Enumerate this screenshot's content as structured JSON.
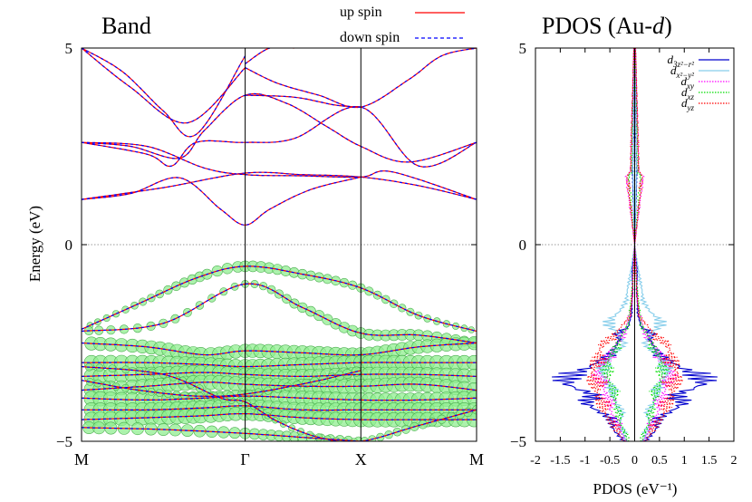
{
  "figure": {
    "left_panel_title": "Band",
    "right_panel_title_main": "PDOS (Au-",
    "right_panel_title_italic": "d",
    "right_panel_title_close": ")"
  },
  "chart_data": [
    {
      "type": "line",
      "title": "Band",
      "xlabel": "",
      "ylabel": "Energy (eV)",
      "ylim": [
        -5,
        5
      ],
      "x_ticks": [
        {
          "label": "M",
          "k": 0.0
        },
        {
          "label": "Γ",
          "k": 1.0
        },
        {
          "label": "X",
          "k": 1.7071
        },
        {
          "label": "M",
          "k": 2.4142
        }
      ],
      "y_ticks": [
        -5,
        0,
        5
      ],
      "fermi_level": 0,
      "legend_position": "top-center",
      "legend": [
        {
          "name": "up spin",
          "color": "#ff0000",
          "style": "solid"
        },
        {
          "name": "down spin",
          "color": "#0000ff",
          "style": "dashed"
        }
      ],
      "weight_marker_color": "#90ee90",
      "bands_eV": [
        {
          "k": [
            0.0,
            0.5,
            1.0,
            1.35,
            1.7071,
            2.06,
            2.4142
          ],
          "E": [
            1.15,
            1.45,
            1.82,
            1.78,
            1.72,
            1.5,
            1.15
          ],
          "w": [
            0,
            0,
            0,
            0,
            0,
            0,
            0
          ]
        },
        {
          "k": [
            0.0,
            0.4,
            0.75,
            1.0,
            1.35,
            1.7071,
            1.9,
            2.4142
          ],
          "E": [
            2.6,
            2.5,
            1.95,
            1.78,
            1.75,
            1.72,
            1.85,
            1.15
          ],
          "w": [
            0,
            0,
            0,
            0,
            0,
            0,
            0,
            0
          ]
        },
        {
          "k": [
            0.0,
            0.3,
            0.6,
            0.85,
            1.0,
            1.15,
            1.4,
            1.7071
          ],
          "E": [
            1.15,
            1.3,
            1.7,
            0.9,
            0.5,
            0.9,
            1.4,
            1.72
          ],
          "w": [
            0,
            0,
            0,
            0,
            0,
            0,
            0,
            0
          ]
        },
        {
          "k": [
            0.0,
            0.4,
            0.55,
            0.7,
            1.0,
            1.3,
            1.7071,
            2.06,
            2.4142
          ],
          "E": [
            2.6,
            2.3,
            2.0,
            2.6,
            2.6,
            2.7,
            3.5,
            2.0,
            2.6
          ],
          "w": [
            0,
            0,
            0,
            0,
            0,
            0,
            0,
            0,
            0
          ]
        },
        {
          "k": [
            0.0,
            0.3,
            0.6,
            0.75,
            1.0,
            1.25,
            1.5,
            1.7071,
            2.0,
            2.4142
          ],
          "E": [
            2.6,
            2.5,
            2.2,
            2.9,
            3.8,
            3.6,
            3.0,
            2.5,
            2.1,
            2.6
          ],
          "w": [
            0,
            0,
            0,
            0,
            0,
            0,
            0,
            0,
            0,
            0
          ]
        },
        {
          "k": [
            0.0,
            0.3,
            0.65,
            1.0
          ],
          "E": [
            5.0,
            4.0,
            3.1,
            4.5
          ],
          "w": [
            0,
            0,
            0,
            0
          ]
        },
        {
          "k": [
            0.0,
            0.25,
            0.5,
            0.7,
            1.0
          ],
          "E": [
            5.0,
            4.4,
            3.4,
            2.8,
            4.8
          ],
          "w": [
            0,
            0,
            0,
            0,
            0
          ]
        },
        {
          "k": [
            1.0,
            1.2,
            1.45,
            1.7071,
            2.0,
            2.2,
            2.4142
          ],
          "E": [
            4.5,
            4.1,
            3.8,
            3.5,
            4.2,
            4.8,
            5.0
          ],
          "w": [
            0,
            0,
            0,
            0,
            0,
            0,
            0
          ]
        },
        {
          "k": [
            1.0,
            1.3,
            1.55,
            1.7071
          ],
          "E": [
            3.8,
            3.75,
            3.55,
            3.5
          ],
          "w": [
            0,
            0,
            0,
            0
          ]
        },
        {
          "k": [
            1.0,
            1.15,
            1.3
          ],
          "E": [
            4.6,
            5.0,
            5.0
          ],
          "w": [
            0,
            0,
            0
          ]
        },
        {
          "k": [
            0.0,
            0.35,
            0.7,
            1.0,
            1.35,
            1.7071,
            2.06,
            2.4142
          ],
          "E": [
            -2.15,
            -1.5,
            -0.85,
            -0.55,
            -0.75,
            -1.1,
            -1.8,
            -2.2
          ],
          "w": [
            0.3,
            0.4,
            0.6,
            0.7,
            0.6,
            0.5,
            0.4,
            0.3
          ]
        },
        {
          "k": [
            0.0,
            0.5,
            1.0,
            1.35,
            1.7071,
            2.06,
            2.4142
          ],
          "E": [
            -2.2,
            -2.0,
            -1.0,
            -1.6,
            -2.25,
            -2.3,
            -2.5
          ],
          "w": [
            0.5,
            0.5,
            0.4,
            0.6,
            0.7,
            0.7,
            0.6
          ]
        },
        {
          "k": [
            0.0,
            0.4,
            0.75,
            1.0,
            1.35,
            1.7071,
            2.06,
            2.4142
          ],
          "E": [
            -2.5,
            -2.6,
            -2.8,
            -2.7,
            -2.75,
            -2.8,
            -2.6,
            -2.5
          ],
          "w": [
            0.9,
            0.9,
            1.0,
            0.9,
            1.0,
            1.0,
            0.9,
            0.9
          ]
        },
        {
          "k": [
            0.0,
            0.4,
            0.75,
            1.0,
            1.35,
            1.7071,
            2.06,
            2.4142
          ],
          "E": [
            -3.0,
            -3.0,
            -3.05,
            -3.1,
            -3.05,
            -3.0,
            -3.0,
            -3.0
          ],
          "w": [
            1.0,
            1.0,
            1.0,
            1.0,
            1.0,
            1.0,
            1.0,
            1.0
          ]
        },
        {
          "k": [
            0.0,
            0.4,
            0.75,
            1.0,
            1.35,
            1.7071,
            2.06,
            2.4142
          ],
          "E": [
            -3.35,
            -3.3,
            -3.25,
            -3.3,
            -3.35,
            -3.3,
            -3.3,
            -3.35
          ],
          "w": [
            1.0,
            1.0,
            1.0,
            0.9,
            1.0,
            1.0,
            1.0,
            1.0
          ]
        },
        {
          "k": [
            0.0,
            0.4,
            0.75,
            1.0,
            1.35,
            1.7071,
            2.06,
            2.4142
          ],
          "E": [
            -3.7,
            -3.6,
            -3.5,
            -3.55,
            -3.6,
            -3.6,
            -3.55,
            -3.7
          ],
          "w": [
            1.0,
            1.0,
            1.0,
            1.0,
            1.0,
            1.0,
            1.0,
            1.0
          ]
        },
        {
          "k": [
            0.0,
            0.4,
            0.75,
            1.0,
            1.35,
            1.7071,
            2.06,
            2.4142
          ],
          "E": [
            -3.9,
            -3.95,
            -3.9,
            -3.85,
            -3.9,
            -3.95,
            -3.95,
            -3.9
          ],
          "w": [
            1.0,
            1.0,
            0.9,
            0.8,
            1.0,
            1.0,
            1.0,
            1.0
          ]
        },
        {
          "k": [
            0.0,
            0.4,
            0.75,
            1.0,
            1.35,
            1.7071,
            2.06,
            2.4142
          ],
          "E": [
            -4.2,
            -4.2,
            -4.15,
            -4.1,
            -4.2,
            -4.2,
            -4.2,
            -4.2
          ],
          "w": [
            1.0,
            1.0,
            1.0,
            0.9,
            1.0,
            1.0,
            1.0,
            1.0
          ]
        },
        {
          "k": [
            0.0,
            0.4,
            0.75,
            1.0,
            1.35,
            1.7071,
            2.06,
            2.4142
          ],
          "E": [
            -4.45,
            -4.4,
            -4.35,
            -4.3,
            -4.4,
            -4.45,
            -4.45,
            -4.45
          ],
          "w": [
            1.0,
            1.0,
            1.0,
            0.9,
            0.9,
            1.0,
            1.0,
            1.0
          ]
        },
        {
          "k": [
            0.0,
            0.5,
            1.0,
            1.35,
            1.7071
          ],
          "E": [
            -4.65,
            -4.7,
            -4.8,
            -4.9,
            -5.0
          ],
          "w": [
            0.8,
            0.8,
            0.7,
            0.6,
            0.5
          ]
        },
        {
          "k": [
            0.0,
            0.5,
            0.85,
            1.0,
            1.2,
            1.45,
            1.7071,
            2.06,
            2.4142
          ],
          "E": [
            -3.1,
            -3.3,
            -3.9,
            -4.0,
            -4.5,
            -4.9,
            -5.0,
            -4.6,
            -4.2
          ],
          "w": [
            0.4,
            0.4,
            0.4,
            0.3,
            0.3,
            0.4,
            0.4,
            0.5,
            0.5
          ]
        },
        {
          "k": [
            0.0,
            0.35,
            0.7,
            1.0,
            1.4,
            1.7071
          ],
          "E": [
            -3.45,
            -3.7,
            -3.85,
            -3.8,
            -3.5,
            -3.2
          ],
          "w": [
            0.4,
            0.4,
            0.4,
            0.4,
            0.5,
            0.6
          ]
        }
      ]
    },
    {
      "type": "line",
      "title": "PDOS (Au-d)",
      "xlabel": "PDOS (eV⁻¹)",
      "ylabel": "",
      "xlim": [
        -2,
        2
      ],
      "ylim": [
        -5,
        5
      ],
      "x_ticks": [
        "-2",
        "-1.5",
        "-1",
        "-0.5",
        "0",
        "0.5",
        "1",
        "1.5",
        "2"
      ],
      "y_ticks": [
        -5,
        0,
        5
      ],
      "fermi_level": 0,
      "legend_position": "top-right",
      "series": [
        {
          "name": "d3z2-r2",
          "label_main": "d",
          "label_sub": "3z²−r²",
          "color": "#0000cd",
          "style": "solid",
          "E": [
            -5.0,
            -4.7,
            -4.4,
            -4.2,
            -4.0,
            -3.8,
            -3.6,
            -3.45,
            -3.3,
            -3.15,
            -3.0,
            -2.8,
            -2.6,
            -2.4,
            -2.25,
            -2.1,
            -1.8,
            -1.2,
            -0.6,
            0.0,
            1.8,
            2.5,
            5.0
          ],
          "dos": [
            0.25,
            0.5,
            0.6,
            0.9,
            1.2,
            1.0,
            1.5,
            1.7,
            1.65,
            1.1,
            0.9,
            0.6,
            0.45,
            0.35,
            0.45,
            0.15,
            0.08,
            0.05,
            0.06,
            0.0,
            0.05,
            0.03,
            0.02
          ]
        },
        {
          "name": "dx2-y2",
          "label_main": "d",
          "label_sub": "x²−y²",
          "color": "#87ceeb",
          "style": "solid",
          "E": [
            -5.0,
            -4.6,
            -4.3,
            -4.0,
            -3.7,
            -3.4,
            -3.1,
            -2.8,
            -2.5,
            -2.2,
            -2.0,
            -1.7,
            -1.4,
            -1.0,
            -0.6,
            0.0,
            1.8,
            5.0
          ],
          "dos": [
            0.2,
            0.35,
            0.3,
            0.45,
            0.55,
            0.7,
            0.8,
            0.5,
            0.25,
            0.45,
            0.7,
            0.35,
            0.2,
            0.15,
            0.08,
            0.0,
            0.04,
            0.02
          ]
        },
        {
          "name": "dxy",
          "label_main": "d",
          "label_sub": "xy",
          "color": "#ff00ff",
          "style": "dotted",
          "E": [
            -5.0,
            -4.5,
            -4.1,
            -3.7,
            -3.3,
            -3.0,
            -2.7,
            -2.4,
            -2.1,
            -1.5,
            -0.6,
            0.0,
            1.75,
            1.85,
            5.0
          ],
          "dos": [
            0.2,
            0.45,
            0.6,
            0.7,
            0.9,
            0.75,
            0.55,
            0.35,
            0.2,
            0.06,
            0.04,
            0.0,
            0.2,
            0.1,
            0.02
          ]
        },
        {
          "name": "dxz",
          "label_main": "d",
          "label_sub": "xz",
          "color": "#00dd00",
          "style": "dotted",
          "E": [
            -5.0,
            -4.5,
            -4.0,
            -3.6,
            -3.2,
            -2.9,
            -2.6,
            -2.3,
            -2.0,
            -1.0,
            0.0,
            1.75,
            1.85,
            5.0
          ],
          "dos": [
            0.15,
            0.35,
            0.45,
            0.55,
            0.7,
            0.6,
            0.45,
            0.3,
            0.15,
            0.05,
            0.0,
            0.15,
            0.08,
            0.02
          ]
        },
        {
          "name": "dyz",
          "label_main": "d",
          "label_sub": "yz",
          "color": "#ff0000",
          "style": "dotted",
          "E": [
            -5.0,
            -4.6,
            -4.2,
            -3.8,
            -3.4,
            -3.1,
            -2.8,
            -2.5,
            -2.2,
            -1.8,
            -1.0,
            0.0,
            1.75,
            1.85,
            5.0
          ],
          "dos": [
            0.25,
            0.5,
            0.75,
            0.85,
            1.0,
            0.95,
            0.85,
            0.75,
            0.4,
            0.1,
            0.04,
            0.0,
            0.18,
            0.1,
            0.02
          ]
        }
      ]
    }
  ]
}
